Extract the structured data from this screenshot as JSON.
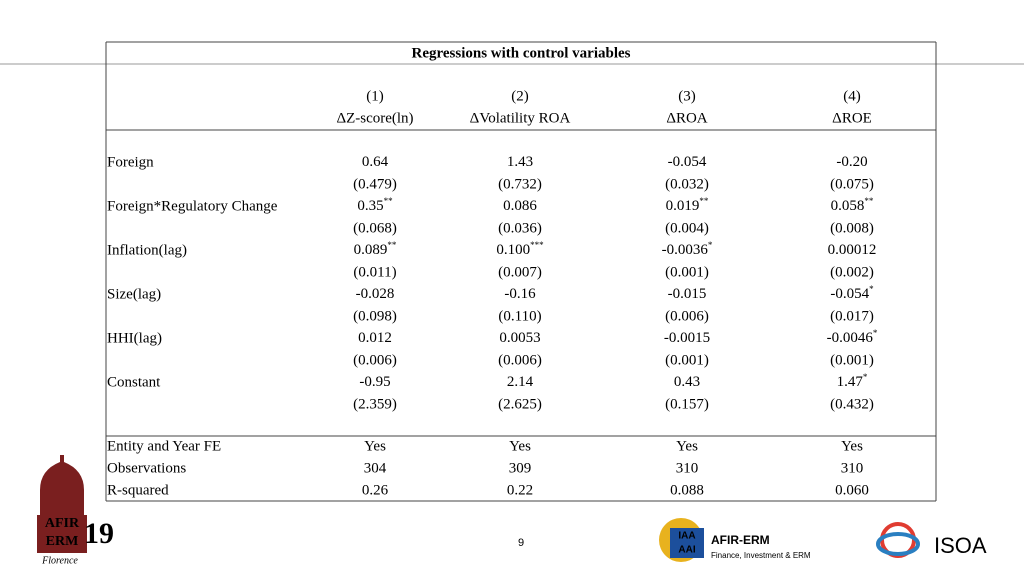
{
  "table": {
    "title": "Regressions with control variables",
    "column_numbers": [
      "(1)",
      "(2)",
      "(3)",
      "(4)"
    ],
    "columns": [
      "ΔZ-score(ln)",
      "ΔVolatility ROA",
      "ΔROA",
      "ΔROE"
    ],
    "variables": [
      {
        "label": "Foreign",
        "estimates": [
          {
            "value": "0.64"
          },
          {
            "value": "1.43"
          },
          {
            "value": "-0.054"
          },
          {
            "value": "-0.20"
          }
        ],
        "std_errors": [
          "(0.479)",
          "(0.732)",
          "(0.032)",
          "(0.075)"
        ]
      },
      {
        "label": "Foreign*Regulatory Change",
        "estimates": [
          {
            "value": "0.35",
            "stars": "**"
          },
          {
            "value": "0.086"
          },
          {
            "value": "0.019",
            "stars": "**"
          },
          {
            "value": "0.058",
            "stars": "**"
          }
        ],
        "std_errors": [
          "(0.068)",
          "(0.036)",
          "(0.004)",
          "(0.008)"
        ]
      },
      {
        "label": "Inflation(lag)",
        "estimates": [
          {
            "value": "0.089",
            "stars": "**"
          },
          {
            "value": "0.100",
            "stars": "***"
          },
          {
            "value": "-0.0036",
            "stars": "*"
          },
          {
            "value": "0.00012"
          }
        ],
        "std_errors": [
          "(0.011)",
          "(0.007)",
          "(0.001)",
          "(0.002)"
        ]
      },
      {
        "label": "Size(lag)",
        "estimates": [
          {
            "value": "-0.028"
          },
          {
            "value": "-0.16"
          },
          {
            "value": "-0.015"
          },
          {
            "value": "-0.054",
            "stars": "*"
          }
        ],
        "std_errors": [
          "(0.098)",
          "(0.110)",
          "(0.006)",
          "(0.017)"
        ]
      },
      {
        "label": "HHI(lag)",
        "estimates": [
          {
            "value": "0.012"
          },
          {
            "value": "0.0053"
          },
          {
            "value": "-0.0015"
          },
          {
            "value": "-0.0046",
            "stars": "*"
          }
        ],
        "std_errors": [
          "(0.006)",
          "(0.006)",
          "(0.001)",
          "(0.001)"
        ]
      },
      {
        "label": "Constant",
        "estimates": [
          {
            "value": "-0.95"
          },
          {
            "value": "2.14"
          },
          {
            "value": "0.43"
          },
          {
            "value": "1.47",
            "stars": "*"
          }
        ],
        "std_errors": [
          "(2.359)",
          "(2.625)",
          "(0.157)",
          "(0.432)"
        ]
      }
    ],
    "footer": [
      {
        "label": "Entity and Year FE",
        "values": [
          "Yes",
          "Yes",
          "Yes",
          "Yes"
        ]
      },
      {
        "label": "Observations",
        "values": [
          "304",
          "309",
          "310",
          "310"
        ]
      },
      {
        "label": "R-squared",
        "values": [
          "0.26",
          "0.22",
          "0.088",
          "0.060"
        ]
      }
    ]
  },
  "page_number": "9",
  "logos": {
    "afir_erm_florence": {
      "line1": "AFIR",
      "line2": "ERM",
      "year": "19",
      "city": "Florence"
    },
    "iaa": {
      "mark": "IAA",
      "mark2": "AAI",
      "name": "AFIR-ERM",
      "subtitle": "Finance, Investment & ERM"
    },
    "isoa": "ISOA"
  }
}
